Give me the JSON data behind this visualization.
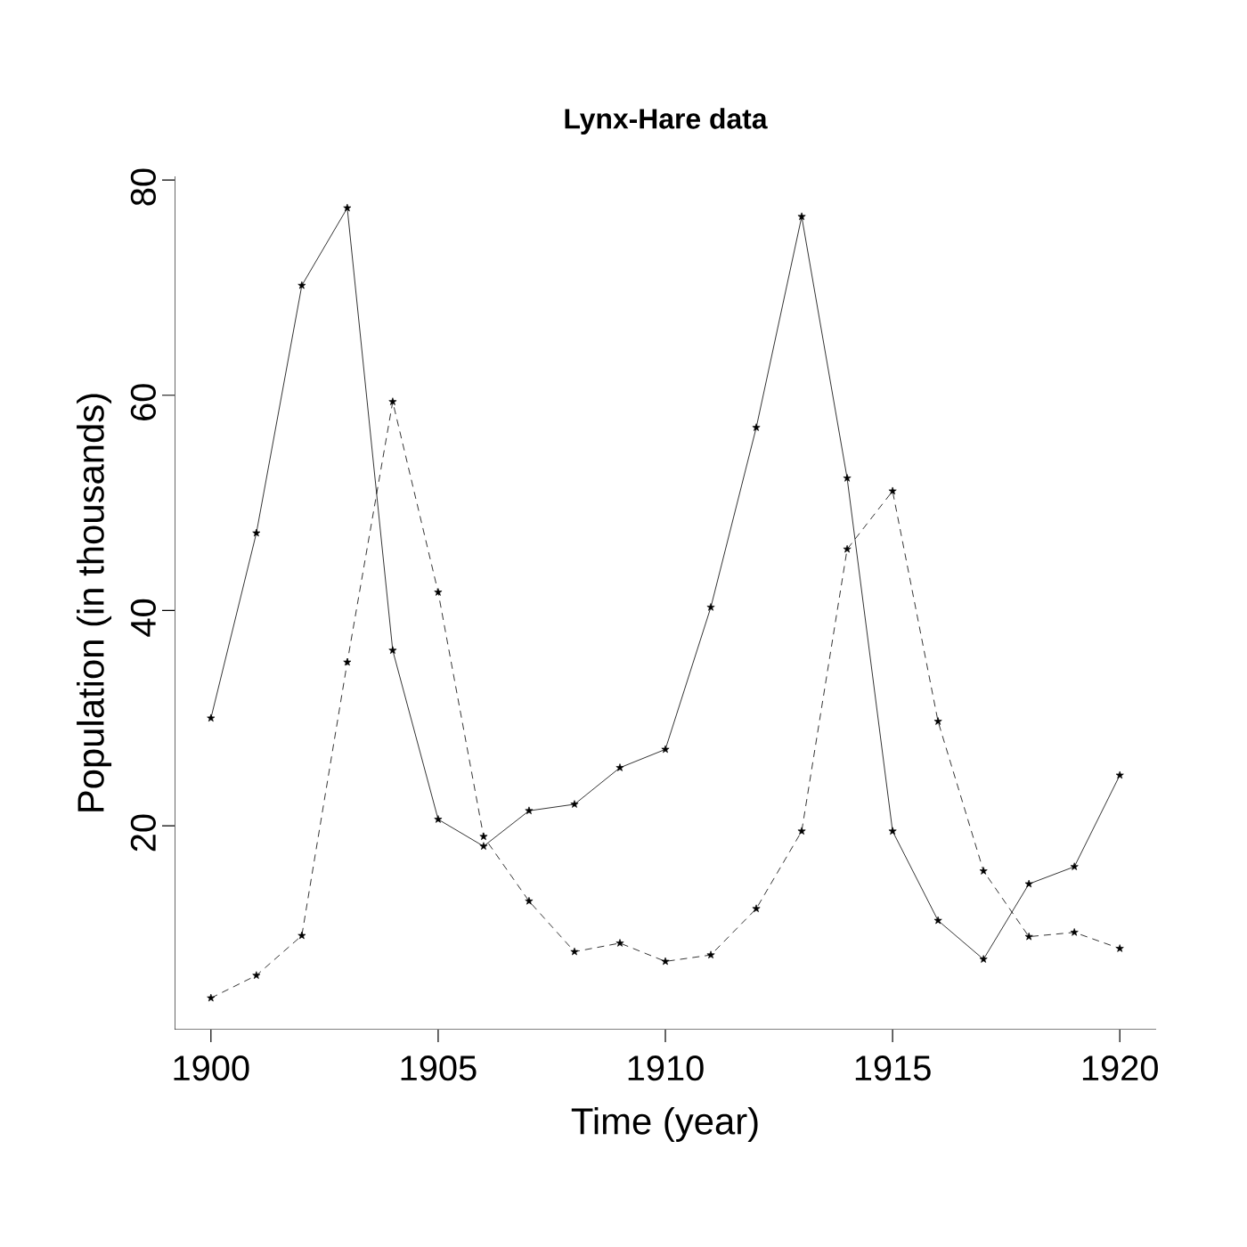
{
  "chart_data": {
    "type": "line",
    "title": "Lynx-Hare data",
    "xlabel": "Time (year)",
    "ylabel": "Population (in thousands)",
    "x": [
      1900,
      1901,
      1902,
      1903,
      1904,
      1905,
      1906,
      1907,
      1908,
      1909,
      1910,
      1911,
      1912,
      1913,
      1914,
      1915,
      1916,
      1917,
      1918,
      1919,
      1920
    ],
    "series": [
      {
        "color": "#000000",
        "line_style": "solid",
        "values": [
          30,
          47.2,
          70.2,
          77.4,
          36.3,
          20.6,
          18.1,
          21.4,
          22,
          25.4,
          27.1,
          40.3,
          57,
          76.6,
          52.3,
          19.5,
          11.2,
          7.6,
          14.6,
          16.2,
          24.7
        ]
      },
      {
        "color": "#000000",
        "line_style": "dashed",
        "values": [
          4,
          6.1,
          9.8,
          35.2,
          59.4,
          41.7,
          19,
          13,
          8.3,
          9.1,
          7.4,
          8,
          12.3,
          19.5,
          45.7,
          51.1,
          29.7,
          15.8,
          9.7,
          10.1,
          8.6
        ]
      }
    ],
    "marker": "star",
    "grid": false,
    "xlim": [
      1899.2,
      1920.8
    ],
    "ylim": [
      1.06,
      80.34
    ],
    "xticks": [
      1900,
      1905,
      1910,
      1915,
      1920
    ],
    "yticks": [
      20,
      40,
      60,
      80
    ]
  }
}
